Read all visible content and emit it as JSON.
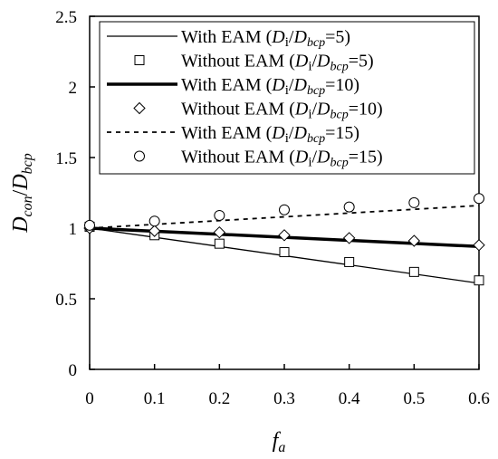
{
  "chart_data": {
    "type": "line",
    "title": "",
    "xlabel": "f_a",
    "ylabel": "D_con/D_bcp",
    "xlim": [
      0,
      0.6
    ],
    "ylim": [
      0,
      2.5
    ],
    "xticks": [
      "0",
      "0.1",
      "0.2",
      "0.3",
      "0.4",
      "0.5",
      "0.6"
    ],
    "yticks": [
      "0",
      "0.5",
      "1",
      "1.5",
      "2",
      "2.5"
    ],
    "grid": false,
    "legend_position": "top-right",
    "series": [
      {
        "name": "With EAM (Di/Dbcp=5)",
        "style": "thin-solid-line",
        "x": [
          0,
          0.6
        ],
        "y": [
          1.0,
          0.61
        ]
      },
      {
        "name": "Without EAM (Di/Dbcp=5)",
        "style": "square-marker",
        "x": [
          0,
          0.1,
          0.2,
          0.3,
          0.4,
          0.5,
          0.6
        ],
        "y": [
          1.01,
          0.95,
          0.89,
          0.83,
          0.76,
          0.69,
          0.63
        ]
      },
      {
        "name": "With EAM (Di/Dbcp=10)",
        "style": "thick-solid-line",
        "x": [
          0,
          0.6
        ],
        "y": [
          1.0,
          0.87
        ]
      },
      {
        "name": "Without EAM (Di/Dbcp=10)",
        "style": "diamond-marker",
        "x": [
          0,
          0.1,
          0.2,
          0.3,
          0.4,
          0.5,
          0.6
        ],
        "y": [
          1.0,
          0.98,
          0.97,
          0.95,
          0.93,
          0.91,
          0.88
        ]
      },
      {
        "name": "With EAM (Di/Dbcp=15)",
        "style": "dashed-line",
        "x": [
          0,
          0.6
        ],
        "y": [
          1.0,
          1.16
        ]
      },
      {
        "name": "Without EAM (Di/Dbcp=15)",
        "style": "circle-marker",
        "x": [
          0,
          0.1,
          0.2,
          0.3,
          0.4,
          0.5,
          0.6
        ],
        "y": [
          1.02,
          1.05,
          1.09,
          1.13,
          1.15,
          1.18,
          1.21
        ]
      }
    ],
    "legend": [
      {
        "prefix": "With EAM (",
        "suffix": "=5)"
      },
      {
        "prefix": "Without EAM (",
        "suffix": "=5)"
      },
      {
        "prefix": "With EAM (",
        "suffix": "=10)"
      },
      {
        "prefix": "Without EAM (",
        "suffix": "=10)"
      },
      {
        "prefix": "With EAM (",
        "suffix": "=15)"
      },
      {
        "prefix": "Without EAM (",
        "suffix": "=15)"
      }
    ],
    "legend_symbol": {
      "d": "D",
      "i": "i",
      "slash": "/",
      "D": "D",
      "bcp": "bcp"
    },
    "ylabel_parts": {
      "main1": "D",
      "sub1": "con",
      "slash": "/",
      "main2": "D",
      "sub2": "bcp"
    },
    "xlabel_parts": {
      "main": "f",
      "sub": "a"
    }
  }
}
